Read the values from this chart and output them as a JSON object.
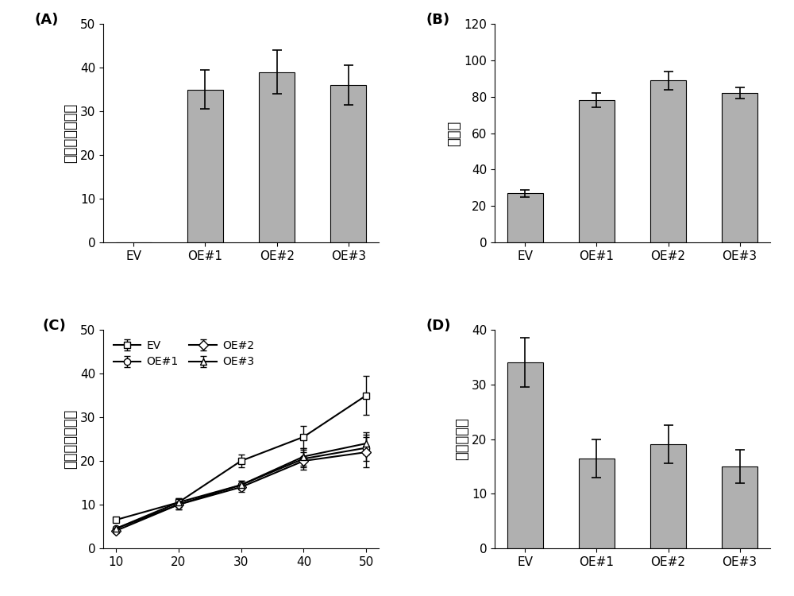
{
  "panel_A": {
    "label": "(A)",
    "categories": [
      "EV",
      "OE#1",
      "OE#2",
      "OE#3"
    ],
    "values": [
      0,
      35,
      39,
      36
    ],
    "errors": [
      0,
      4.5,
      5.0,
      4.5
    ],
    "ylim": [
      0,
      50
    ],
    "yticks": [
      0,
      10,
      20,
      30,
      40,
      50
    ],
    "ylabel": "基图相对表达量"
  },
  "panel_B": {
    "label": "(B)",
    "categories": [
      "EV",
      "OE#1",
      "OE#2",
      "OE#3"
    ],
    "values": [
      27,
      78,
      89,
      82
    ],
    "errors": [
      2,
      4,
      5,
      3
    ],
    "ylim": [
      0,
      120
    ],
    "yticks": [
      0,
      20,
      40,
      60,
      80,
      100,
      120
    ],
    "ylabel": "存活率"
  },
  "panel_C": {
    "label": "(C)",
    "xlabel_vals": [
      10,
      20,
      30,
      40,
      50
    ],
    "series": {
      "EV": {
        "values": [
          6.5,
          10.5,
          20,
          25.5,
          35
        ],
        "errors": [
          0.5,
          1.0,
          1.5,
          2.5,
          4.5
        ],
        "marker": "s",
        "linestyle": "-"
      },
      "OE#1": {
        "values": [
          4.5,
          10.0,
          14.5,
          20.5,
          23
        ],
        "errors": [
          0.5,
          1.0,
          1.0,
          2.0,
          3.0
        ],
        "marker": "o",
        "linestyle": "-"
      },
      "OE#2": {
        "values": [
          4.0,
          10.0,
          14.0,
          20.0,
          22
        ],
        "errors": [
          0.5,
          1.0,
          1.0,
          2.0,
          3.5
        ],
        "marker": "D",
        "linestyle": "-"
      },
      "OE#3": {
        "values": [
          4.5,
          10.5,
          14.5,
          21.0,
          24
        ],
        "errors": [
          0.5,
          1.0,
          1.0,
          2.0,
          2.5
        ],
        "marker": "^",
        "linestyle": "-"
      }
    },
    "ylim": [
      0,
      50
    ],
    "yticks": [
      0,
      10,
      20,
      30,
      40,
      50
    ],
    "ylabel": "叶片相对失水率"
  },
  "panel_D": {
    "label": "(D)",
    "categories": [
      "EV",
      "OE#1",
      "OE#2",
      "OE#3"
    ],
    "values": [
      34,
      16.5,
      19,
      15
    ],
    "errors": [
      4.5,
      3.5,
      3.5,
      3.0
    ],
    "ylim": [
      0,
      40
    ],
    "yticks": [
      0,
      10,
      20,
      30,
      40
    ],
    "ylabel": "相对电导率"
  },
  "bar_color": "#b0b0b0",
  "line_color": "#000000",
  "background": "#ffffff",
  "font_size_label": 13,
  "font_size_tick": 11,
  "font_size_panel": 13
}
